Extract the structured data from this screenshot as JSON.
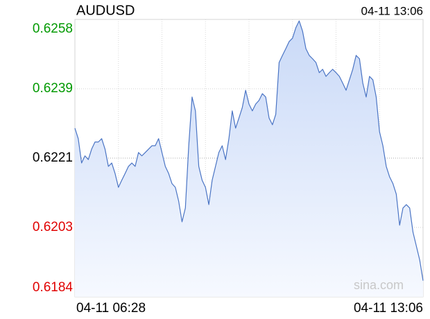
{
  "chart_data": {
    "type": "line",
    "title": "AUDUSD",
    "timestamp": "04-11 13:06",
    "watermark": "sina.com",
    "categories": [
      "04-11 06:28",
      null,
      null,
      null,
      null,
      null,
      null,
      null,
      null,
      null,
      null,
      null,
      null,
      null,
      null,
      null,
      null,
      null,
      null,
      null,
      null,
      null,
      null,
      null,
      null,
      null,
      null,
      null,
      null,
      null,
      null,
      null,
      null,
      null,
      null,
      null,
      null,
      null,
      null,
      null,
      null,
      null,
      null,
      null,
      null,
      null,
      null,
      null,
      null,
      null,
      null,
      null,
      null,
      null,
      null,
      null,
      null,
      null,
      null,
      null,
      null,
      null,
      null,
      null,
      null,
      null,
      null,
      null,
      null,
      null,
      null,
      null,
      null,
      null,
      null,
      null,
      null,
      null,
      null,
      null,
      null,
      null,
      null,
      null,
      null,
      null,
      null,
      null,
      null,
      null,
      null,
      null,
      null,
      null,
      null,
      null,
      null,
      null,
      null,
      null,
      null,
      null,
      null,
      null,
      "04-11 13:06"
    ],
    "series": [
      {
        "name": "AUDUSD",
        "color": "#4a74c4",
        "values": [
          0.6229,
          0.62262,
          0.62197,
          0.62216,
          0.62206,
          0.62234,
          0.62253,
          0.62253,
          0.62262,
          0.62234,
          0.62188,
          0.62197,
          0.62169,
          0.62132,
          0.62151,
          0.62169,
          0.62188,
          0.62197,
          0.62188,
          0.62225,
          0.62216,
          0.62225,
          0.62234,
          0.62243,
          0.62243,
          0.62262,
          0.62225,
          0.62188,
          0.62169,
          0.62142,
          0.62132,
          0.62095,
          0.6204,
          0.62077,
          0.62243,
          0.62373,
          0.62336,
          0.62188,
          0.62151,
          0.62132,
          0.62086,
          0.62151,
          0.62188,
          0.62225,
          0.62243,
          0.62206,
          0.62262,
          0.62336,
          0.6229,
          0.62317,
          0.62345,
          0.62391,
          0.62354,
          0.62336,
          0.62354,
          0.62364,
          0.62382,
          0.62373,
          0.62317,
          0.62299,
          0.62327,
          0.62465,
          0.62484,
          0.62502,
          0.62521,
          0.6253,
          0.62558,
          0.62576,
          0.62549,
          0.62502,
          0.62484,
          0.62475,
          0.62465,
          0.62438,
          0.62447,
          0.62428,
          0.62438,
          0.62447,
          0.62438,
          0.62428,
          0.6241,
          0.62391,
          0.62419,
          0.62447,
          0.62484,
          0.62475,
          0.6241,
          0.62373,
          0.62428,
          0.62419,
          0.62373,
          0.6228,
          0.62243,
          0.62188,
          0.6216,
          0.62142,
          0.62114,
          0.62031,
          0.62077,
          0.62086,
          0.62077,
          0.62012,
          0.61975,
          0.61938,
          0.61883
        ]
      }
    ],
    "ylim": [
      0.6184,
      0.6258
    ],
    "yticks": [
      0.6184,
      {
        "value": 0.62025,
        "label": "0.6203"
      },
      0.6221,
      {
        "value": 0.62395,
        "label": "0.6239"
      },
      0.6258
    ],
    "ytick_colors": [
      "#e00000",
      "#e00000",
      "#000000",
      "#009900",
      "#009900"
    ],
    "grid": true
  }
}
